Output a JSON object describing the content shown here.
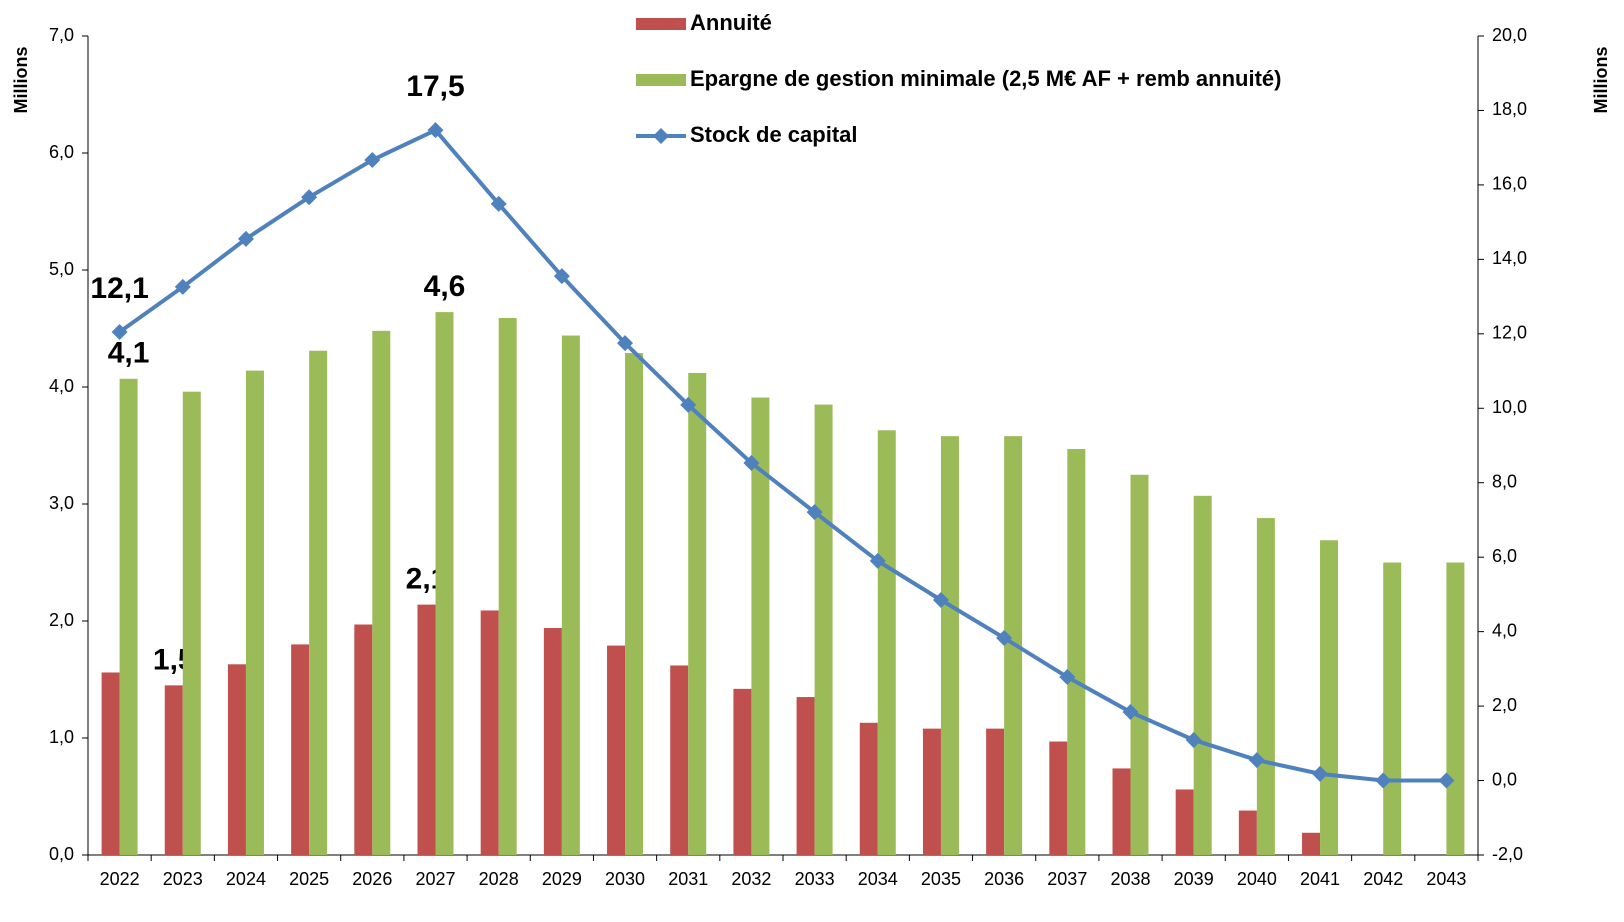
{
  "chart_data": {
    "type": "bar-line",
    "ylabel": "Millions",
    "y2label": "Millions",
    "categories": [
      "2022",
      "2023",
      "2024",
      "2025",
      "2026",
      "2027",
      "2028",
      "2029",
      "2030",
      "2031",
      "2032",
      "2033",
      "2034",
      "2035",
      "2036",
      "2037",
      "2038",
      "2039",
      "2040",
      "2041",
      "2042",
      "2043"
    ],
    "series": [
      {
        "name": "Annuité",
        "color": "#c0504d",
        "type": "bar",
        "values": [
          1.56,
          1.45,
          1.63,
          1.8,
          1.97,
          2.14,
          2.09,
          1.94,
          1.79,
          1.62,
          1.42,
          1.35,
          1.13,
          1.08,
          1.08,
          0.97,
          0.74,
          0.56,
          0.38,
          0.19,
          0,
          0
        ],
        "value_labels": [
          null,
          "1,5",
          null,
          null,
          null,
          "2,1",
          null,
          null,
          null,
          null,
          null,
          null,
          null,
          null,
          null,
          null,
          null,
          null,
          null,
          null,
          null,
          null
        ]
      },
      {
        "name": "Epargne de gestion minimale (2,5 M€ AF + remb annuité)",
        "color": "#9bbb59",
        "type": "bar",
        "values": [
          4.07,
          3.96,
          4.14,
          4.31,
          4.48,
          4.64,
          4.59,
          4.44,
          4.29,
          4.12,
          3.91,
          3.85,
          3.63,
          3.58,
          3.58,
          3.47,
          3.25,
          3.07,
          2.88,
          2.69,
          2.5,
          2.5
        ],
        "value_labels": [
          "4,1",
          null,
          null,
          null,
          null,
          "4,6",
          null,
          null,
          null,
          null,
          null,
          null,
          null,
          null,
          null,
          null,
          null,
          null,
          null,
          null,
          null,
          null
        ]
      },
      {
        "name": "Stock de capital",
        "color": "#4f81bd",
        "type": "line",
        "axis": "y2",
        "values": [
          12.05,
          13.26,
          14.55,
          15.67,
          16.67,
          17.47,
          15.49,
          13.55,
          11.75,
          10.09,
          8.53,
          7.21,
          5.9,
          4.85,
          3.83,
          2.78,
          1.84,
          1.09,
          0.55,
          0.18,
          0,
          0
        ],
        "value_labels": [
          "12,1",
          null,
          null,
          null,
          null,
          "17,5",
          null,
          null,
          null,
          null,
          null,
          null,
          null,
          null,
          null,
          null,
          null,
          null,
          null,
          null,
          null,
          null
        ]
      }
    ],
    "ylim": [
      0,
      7
    ],
    "yticks": [
      {
        "value": 0,
        "label": "0,0"
      },
      {
        "value": 1,
        "label": "1,0"
      },
      {
        "value": 2,
        "label": "2,0"
      },
      {
        "value": 3,
        "label": "3,0"
      },
      {
        "value": 4,
        "label": "4,0"
      },
      {
        "value": 5,
        "label": "5,0"
      },
      {
        "value": 6,
        "label": "6,0"
      },
      {
        "value": 7,
        "label": "7,0"
      }
    ],
    "y2lim": [
      -2,
      20
    ],
    "y2ticks": [
      {
        "value": -2,
        "label": "-2,0"
      },
      {
        "value": 0,
        "label": "0,0"
      },
      {
        "value": 2,
        "label": "2,0"
      },
      {
        "value": 4,
        "label": "4,0"
      },
      {
        "value": 6,
        "label": "6,0"
      },
      {
        "value": 8,
        "label": "8,0"
      },
      {
        "value": 10,
        "label": "10,0"
      },
      {
        "value": 12,
        "label": "12,0"
      },
      {
        "value": 14,
        "label": "14,0"
      },
      {
        "value": 16,
        "label": "16,0"
      },
      {
        "value": 18,
        "label": "18,0"
      },
      {
        "value": 20,
        "label": "20,0"
      }
    ],
    "legend": "top"
  }
}
